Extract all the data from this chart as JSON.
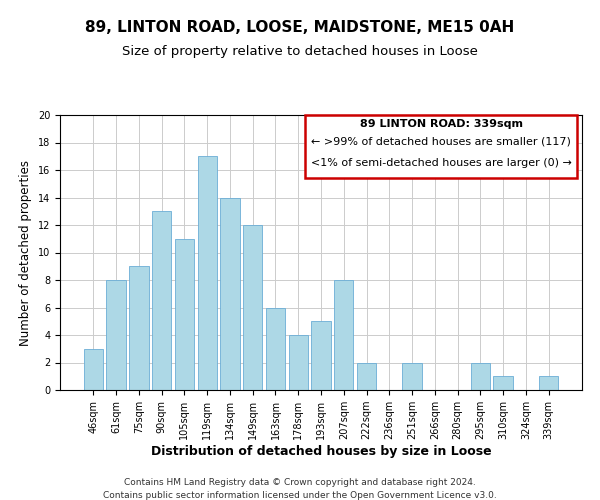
{
  "title": "89, LINTON ROAD, LOOSE, MAIDSTONE, ME15 0AH",
  "subtitle": "Size of property relative to detached houses in Loose",
  "xlabel": "Distribution of detached houses by size in Loose",
  "ylabel": "Number of detached properties",
  "bar_labels": [
    "46sqm",
    "61sqm",
    "75sqm",
    "90sqm",
    "105sqm",
    "119sqm",
    "134sqm",
    "149sqm",
    "163sqm",
    "178sqm",
    "193sqm",
    "207sqm",
    "222sqm",
    "236sqm",
    "251sqm",
    "266sqm",
    "280sqm",
    "295sqm",
    "310sqm",
    "324sqm",
    "339sqm"
  ],
  "bar_values": [
    3,
    8,
    9,
    13,
    11,
    17,
    14,
    12,
    6,
    4,
    5,
    8,
    2,
    0,
    2,
    0,
    0,
    2,
    1,
    0,
    1
  ],
  "bar_color": "#add8e6",
  "bar_edge_color": "#6baed6",
  "highlight_box_color": "#cc0000",
  "ylim": [
    0,
    20
  ],
  "yticks": [
    0,
    2,
    4,
    6,
    8,
    10,
    12,
    14,
    16,
    18,
    20
  ],
  "annotation_title": "89 LINTON ROAD: 339sqm",
  "annotation_line1": "← >99% of detached houses are smaller (117)",
  "annotation_line2": "<1% of semi-detached houses are larger (0) →",
  "footer_line1": "Contains HM Land Registry data © Crown copyright and database right 2024.",
  "footer_line2": "Contains public sector information licensed under the Open Government Licence v3.0.",
  "title_fontsize": 11,
  "subtitle_fontsize": 9.5,
  "xlabel_fontsize": 9,
  "ylabel_fontsize": 8.5,
  "tick_fontsize": 7,
  "annotation_fontsize": 8,
  "footer_fontsize": 6.5,
  "grid_color": "#cccccc",
  "background_color": "#ffffff"
}
